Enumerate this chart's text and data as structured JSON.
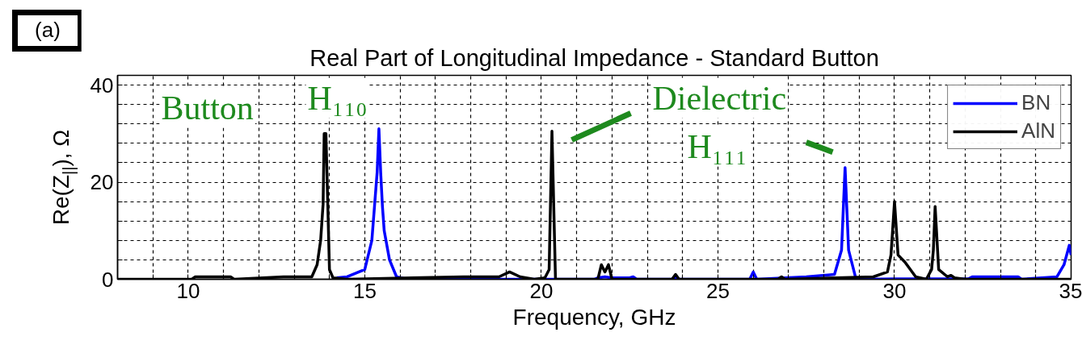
{
  "chart_data": {
    "type": "line",
    "title": "Real Part of Longitudinal Impedance - Standard Button",
    "xlabel": "Frequency, GHz",
    "ylabel": "Re(Z$_{||}$), Ω",
    "xlim": [
      8,
      35
    ],
    "ylim": [
      0,
      42
    ],
    "xticks": [
      {
        "value": 8,
        "label": null
      },
      {
        "value": 9,
        "label": null
      },
      10,
      {
        "value": 11,
        "label": null
      },
      {
        "value": 12,
        "label": null
      },
      {
        "value": 13,
        "label": null
      },
      {
        "value": 14,
        "label": null
      },
      15,
      {
        "value": 16,
        "label": null
      },
      {
        "value": 17,
        "label": null
      },
      {
        "value": 18,
        "label": null
      },
      {
        "value": 19,
        "label": null
      },
      20,
      {
        "value": 21,
        "label": null
      },
      {
        "value": 22,
        "label": null
      },
      {
        "value": 23,
        "label": null
      },
      {
        "value": 24,
        "label": null
      },
      25,
      {
        "value": 26,
        "label": null
      },
      {
        "value": 27,
        "label": null
      },
      {
        "value": 28,
        "label": null
      },
      {
        "value": 29,
        "label": null
      },
      30,
      {
        "value": 31,
        "label": null
      },
      {
        "value": 32,
        "label": null
      },
      {
        "value": 33,
        "label": null
      },
      {
        "value": 34,
        "label": null
      },
      35
    ],
    "yticks": [
      0,
      {
        "value": 4,
        "label": null
      },
      {
        "value": 8,
        "label": null
      },
      {
        "value": 12,
        "label": null
      },
      {
        "value": 16,
        "label": null
      },
      20,
      {
        "value": 24,
        "label": null
      },
      {
        "value": 28,
        "label": null
      },
      {
        "value": 32,
        "label": null
      },
      {
        "value": 36,
        "label": null
      },
      40
    ],
    "grid": true,
    "legend": "top right",
    "marker": "none",
    "line_style": "solid",
    "series": [
      {
        "name": "BN",
        "color": "#0000ff",
        "x": [
          14.2,
          14.5,
          15.0,
          15.2,
          15.35,
          15.4,
          15.45,
          15.5,
          15.55,
          15.7,
          15.9,
          16.2,
          21.5,
          21.6,
          21.8,
          22.0,
          22.5,
          22.6,
          22.7,
          23.7,
          23.8,
          23.9,
          25.9,
          26.0,
          26.1,
          27.5,
          28.3,
          28.5,
          28.6,
          28.7,
          28.9,
          29.2,
          30.0,
          32.1,
          32.2,
          33.5,
          33.6,
          34.6,
          34.8,
          34.95,
          35
        ],
        "values": [
          0.3,
          0.5,
          2,
          8,
          22,
          31,
          22,
          15,
          10,
          4,
          0.5,
          0,
          0,
          0.3,
          0.5,
          0.3,
          0.3,
          0.5,
          0,
          0,
          0.5,
          0,
          0,
          1.5,
          0,
          0.5,
          1,
          6,
          23,
          6,
          0.3,
          0,
          0.1,
          0.1,
          0.5,
          0.5,
          0,
          0.5,
          3,
          7,
          5
        ]
      },
      {
        "name": "AlN",
        "color": "#000000",
        "x": [
          8,
          10.1,
          10.2,
          11.2,
          11.3,
          12.7,
          13.5,
          13.65,
          13.75,
          13.82,
          13.85,
          13.9,
          14.0,
          14.1,
          14.5,
          17.8,
          18.8,
          19.1,
          19.4,
          19.8,
          20.1,
          20.22,
          20.3,
          20.4,
          21.6,
          21.7,
          21.8,
          21.9,
          22.0,
          23.7,
          23.8,
          23.9,
          26.7,
          26.8,
          26.9,
          29.4,
          29.8,
          29.9,
          30.0,
          30.1,
          30.3,
          30.6,
          30.9,
          31.05,
          31.1,
          31.15,
          31.25,
          31.5,
          31.6,
          31.7,
          32.0,
          35
        ],
        "values": [
          0,
          0,
          0.5,
          0.5,
          0,
          0.5,
          0.5,
          3,
          8,
          15.5,
          30,
          30,
          2,
          0.3,
          0,
          0.5,
          0.5,
          1.5,
          0.5,
          0,
          0.3,
          2,
          30.5,
          0,
          0,
          3,
          1.5,
          3,
          0,
          0,
          1,
          0,
          0,
          0.5,
          0,
          0.5,
          1.5,
          5,
          16,
          5,
          3.5,
          0.5,
          0,
          2,
          6,
          15,
          2,
          0.5,
          0.8,
          0.3,
          0,
          0
        ]
      }
    ],
    "annotations": [
      "(a)",
      "Button",
      "H₁₁₀",
      "Dielectric",
      "H₁₁₁"
    ]
  }
}
